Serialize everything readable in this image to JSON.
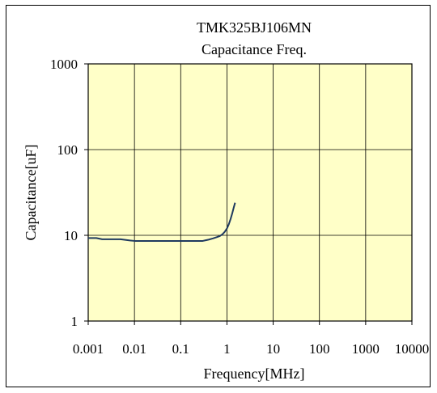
{
  "chart_data": {
    "type": "line",
    "title": "TMK325BJ106MN",
    "subtitle": "Capacitance Freq.",
    "xlabel": "Frequency[MHz]",
    "ylabel": "Capacitance[uF]",
    "x_scale": "log",
    "y_scale": "log",
    "xlim": [
      0.001,
      10000
    ],
    "ylim": [
      1,
      1000
    ],
    "x_ticks": [
      "0.001",
      "0.01",
      "0.1",
      "1",
      "10",
      "100",
      "1000",
      "10000"
    ],
    "y_ticks": [
      "1000",
      "100",
      "10",
      "1"
    ],
    "grid": true,
    "legend": "none",
    "colors": {
      "plot_background": "#ffffc8",
      "grid": "#000000",
      "series": "#1f3a5f"
    },
    "series": [
      {
        "x": [
          0.001,
          0.0015,
          0.002,
          0.003,
          0.005,
          0.008,
          0.01,
          0.02,
          0.05,
          0.1,
          0.2,
          0.3,
          0.4,
          0.5,
          0.6,
          0.7,
          0.8,
          0.9,
          1.0,
          1.1,
          1.2,
          1.3,
          1.4,
          1.5
        ],
        "y": [
          9.3,
          9.3,
          9.0,
          9.0,
          9.0,
          8.7,
          8.6,
          8.6,
          8.6,
          8.6,
          8.6,
          8.6,
          8.9,
          9.2,
          9.5,
          9.8,
          10.3,
          11.0,
          12.0,
          13.5,
          15.5,
          18.0,
          21.0,
          24.0
        ]
      }
    ]
  }
}
